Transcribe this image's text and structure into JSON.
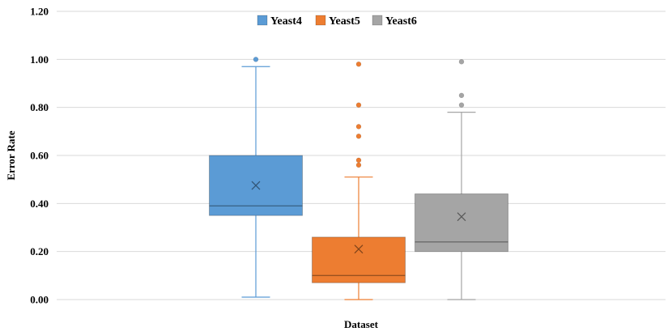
{
  "chart_data": {
    "type": "box",
    "xlabel": "Dataset",
    "ylabel": "Error Rate",
    "ylim": [
      0,
      1.2
    ],
    "ytick_values": [
      0,
      0.2,
      0.4,
      0.6,
      0.8,
      1.0,
      1.2
    ],
    "ytick_labels": [
      "0.00",
      "0.20",
      "0.40",
      "0.60",
      "0.80",
      "1.00",
      "1.20"
    ],
    "grid": true,
    "legend_position": "top-center",
    "series": [
      {
        "name": "Yeast4",
        "color": "#5b9bd5",
        "min": 0.01,
        "q1": 0.35,
        "median": 0.39,
        "q3": 0.6,
        "max": 0.97,
        "mean": 0.475,
        "outliers": [
          1.0
        ]
      },
      {
        "name": "Yeast5",
        "color": "#ed7d31",
        "min": 0.0,
        "q1": 0.07,
        "median": 0.1,
        "q3": 0.26,
        "max": 0.51,
        "mean": 0.21,
        "outliers": [
          0.56,
          0.58,
          0.68,
          0.72,
          0.81,
          0.98
        ]
      },
      {
        "name": "Yeast6",
        "color": "#a5a5a5",
        "min": 0.0,
        "q1": 0.2,
        "median": 0.24,
        "q3": 0.44,
        "max": 0.78,
        "mean": 0.345,
        "outliers": [
          0.81,
          0.85,
          0.99
        ]
      }
    ]
  }
}
